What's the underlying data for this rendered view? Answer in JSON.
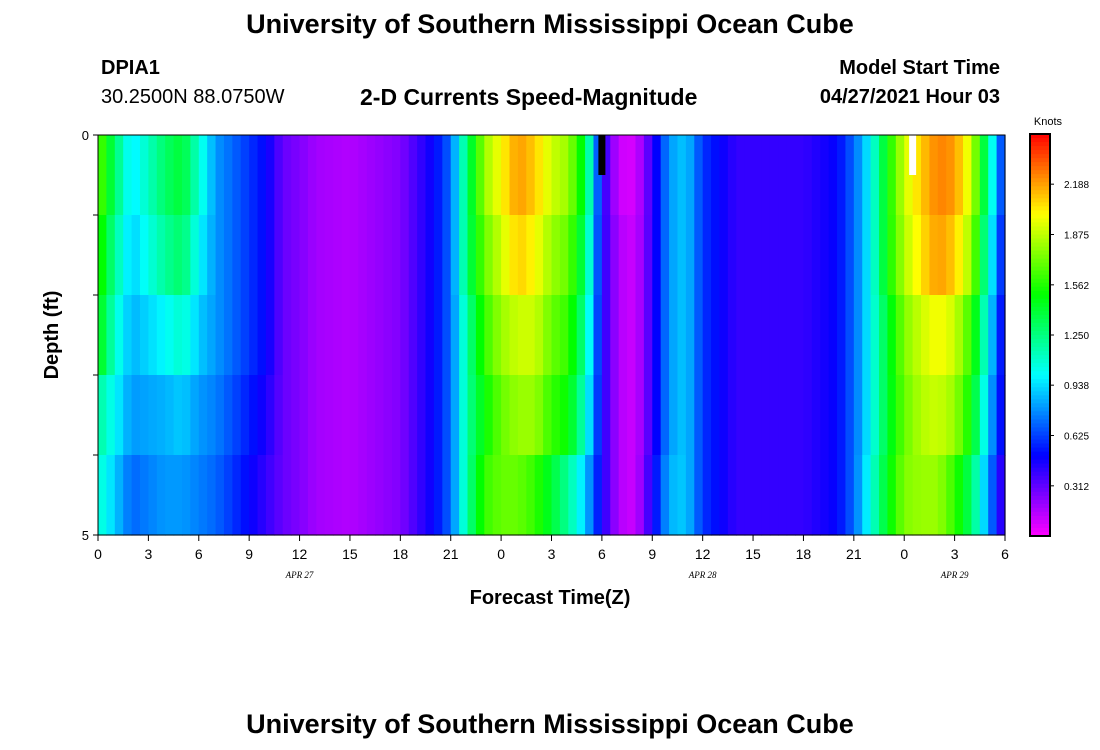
{
  "page": {
    "title": "University of Southern Mississippi Ocean Cube",
    "footer_title": "University of Southern Mississippi Ocean Cube",
    "station": "DPIA1",
    "coords": "30.2500N  88.0750W",
    "subtitle": "2-D Currents Speed-Magnitude",
    "model_label": "Model Start Time",
    "model_time": "04/27/2021 Hour 03"
  },
  "chart_data": {
    "type": "heatmap",
    "title": "2-D Currents Speed-Magnitude",
    "xlabel": "Forecast Time(Z)",
    "ylabel": "Depth (ft)",
    "colorbar_label": "Knots",
    "colorbar_ticks": [
      "2.188",
      "1.875",
      "1.562",
      "1.250",
      "0.938",
      "0.625",
      "0.312"
    ],
    "colorbar_range": [
      0,
      2.5
    ],
    "x_tick_labels": [
      "0",
      "3",
      "6",
      "9",
      "12",
      "15",
      "18",
      "21",
      "0",
      "3",
      "6",
      "9",
      "12",
      "15",
      "18",
      "21",
      "0",
      "3",
      "6"
    ],
    "date_labels": [
      "APR  27",
      "APR  28",
      "APR  29"
    ],
    "y_tick_labels": [
      "0",
      "5"
    ],
    "ylim": [
      0,
      5
    ],
    "x_hours_range": [
      0,
      54
    ],
    "depth_layers": 5,
    "key_hours": [
      0,
      1,
      2,
      4,
      5,
      6,
      7,
      8,
      9,
      10,
      11,
      12,
      13,
      15,
      18,
      20,
      21,
      22,
      23,
      24,
      25,
      26,
      27,
      28,
      29,
      30,
      31,
      32,
      33,
      34,
      35,
      36,
      38,
      42,
      44,
      45,
      46,
      47,
      48,
      49,
      50,
      51,
      52,
      53,
      54
    ],
    "key_values": [
      [
        1.7,
        1.3,
        0.95,
        1.3,
        1.4,
        1.1,
        0.8,
        0.7,
        0.6,
        0.5,
        0.3,
        0.25,
        0.18,
        0.15,
        0.25,
        0.5,
        0.7,
        1.3,
        1.8,
        2.0,
        2.2,
        2.1,
        1.9,
        1.8,
        1.4,
        0.45,
        0.1,
        0.08,
        0.4,
        0.8,
        0.9,
        0.6,
        0.4,
        0.4,
        0.5,
        0.7,
        1.0,
        1.5,
        1.9,
        2.1,
        2.25,
        2.2,
        1.9,
        1.2,
        0.5
      ],
      [
        1.6,
        1.2,
        0.9,
        1.2,
        1.3,
        1.0,
        0.8,
        0.7,
        0.6,
        0.5,
        0.3,
        0.25,
        0.18,
        0.15,
        0.25,
        0.5,
        0.7,
        1.3,
        1.7,
        1.9,
        2.1,
        2.0,
        1.8,
        1.7,
        1.3,
        0.45,
        0.15,
        0.1,
        0.4,
        0.8,
        0.9,
        0.6,
        0.4,
        0.4,
        0.5,
        0.7,
        1.0,
        1.5,
        1.85,
        2.05,
        2.2,
        2.1,
        1.8,
        1.1,
        0.45
      ],
      [
        1.5,
        1.1,
        0.85,
        1.0,
        1.1,
        0.9,
        0.8,
        0.7,
        0.6,
        0.5,
        0.3,
        0.25,
        0.18,
        0.15,
        0.25,
        0.5,
        0.7,
        1.2,
        1.6,
        1.8,
        1.9,
        1.9,
        1.7,
        1.6,
        1.2,
        0.45,
        0.15,
        0.1,
        0.4,
        0.8,
        0.9,
        0.6,
        0.4,
        0.4,
        0.5,
        0.7,
        1.0,
        1.4,
        1.75,
        1.9,
        2.0,
        1.9,
        1.6,
        1.0,
        0.4
      ],
      [
        1.2,
        1.0,
        0.8,
        0.85,
        0.9,
        0.8,
        0.75,
        0.65,
        0.55,
        0.45,
        0.3,
        0.25,
        0.18,
        0.15,
        0.25,
        0.5,
        0.7,
        1.2,
        1.5,
        1.7,
        1.8,
        1.8,
        1.6,
        1.5,
        1.1,
        0.45,
        0.15,
        0.1,
        0.4,
        0.8,
        0.9,
        0.6,
        0.4,
        0.4,
        0.5,
        0.7,
        1.0,
        1.4,
        1.7,
        1.85,
        1.9,
        1.8,
        1.5,
        0.9,
        0.4
      ],
      [
        1.1,
        0.9,
        0.7,
        0.8,
        0.8,
        0.75,
        0.7,
        0.6,
        0.5,
        0.4,
        0.3,
        0.25,
        0.18,
        0.15,
        0.25,
        0.5,
        0.7,
        1.2,
        1.6,
        1.7,
        1.7,
        1.6,
        1.4,
        1.2,
        0.9,
        0.45,
        0.15,
        0.1,
        0.45,
        0.85,
        0.9,
        0.6,
        0.4,
        0.4,
        0.5,
        0.7,
        1.05,
        1.45,
        1.75,
        1.8,
        1.8,
        1.6,
        1.3,
        0.8,
        0.3
      ]
    ],
    "markers": [
      {
        "hour": 30,
        "depth": 0,
        "color": "#000000"
      },
      {
        "hour": 48.5,
        "depth": 0,
        "color": "#ffffff"
      }
    ]
  }
}
